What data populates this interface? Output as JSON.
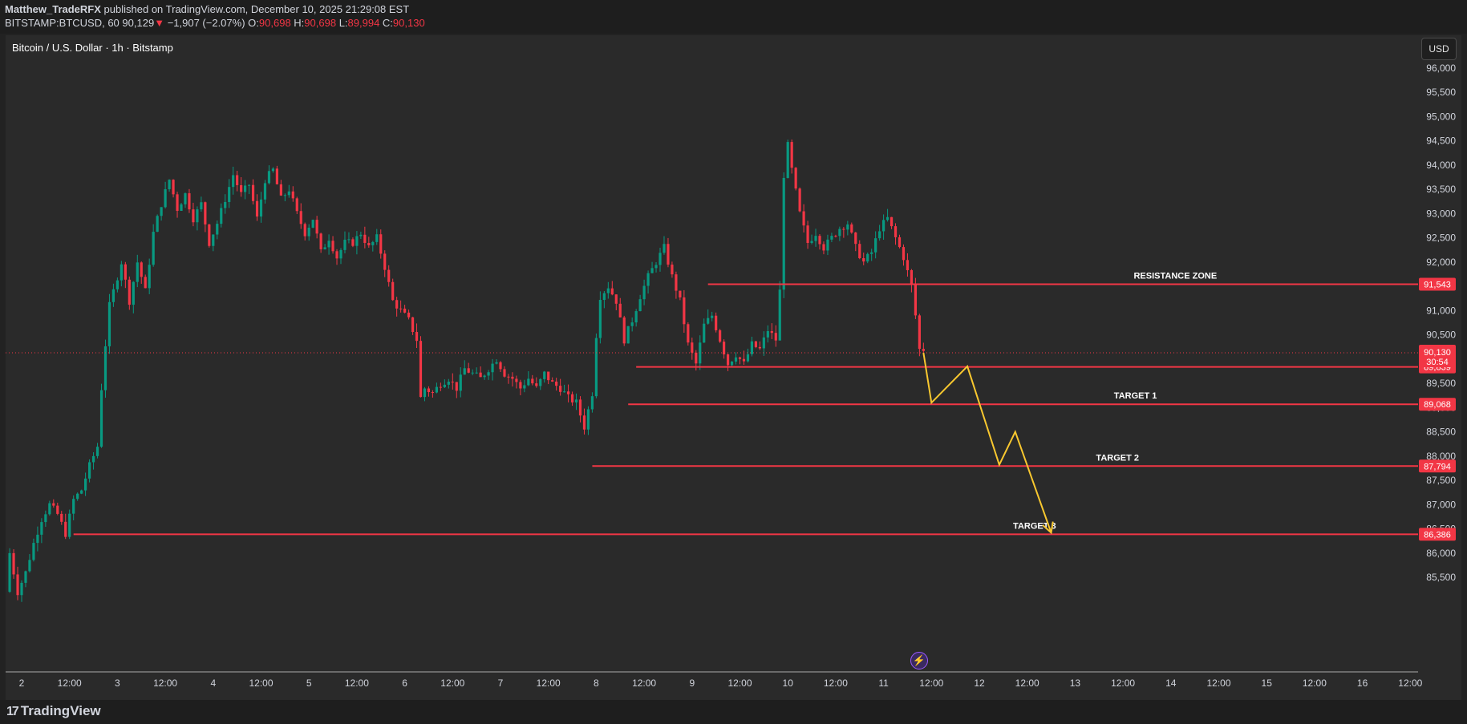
{
  "header": {
    "author": "Matthew_TradeRFX",
    "published_text": "published on TradingView.com, December 10, 2025 21:29:08 EST",
    "symbol_interval": "BITSTAMP:BTCUSD, 60",
    "last": "90,129",
    "change_arrow": "▼",
    "change": "−1,907 (−2.07%)",
    "o_label": "O:",
    "o_value": "90,698",
    "h_label": "H:",
    "h_value": "90,698",
    "l_label": "L:",
    "l_value": "89,994",
    "c_label": "C:",
    "c_value": "90,130"
  },
  "chart_title": "Bitcoin / U.S. Dollar · 1h · Bitstamp",
  "currency": "USD",
  "footer": {
    "logo_mark": "17",
    "logo_text": "TradingView"
  },
  "icons": {
    "bolt": "lightning-bolt-icon"
  },
  "colors": {
    "up": "#089981",
    "down": "#f23645",
    "level_line": "#f23645",
    "projection": "#f9c82f",
    "price_line": "#f23645"
  },
  "chart_data": {
    "type": "candlestick",
    "title": "Bitcoin / U.S. Dollar · 1h · Bitstamp",
    "ylim": [
      85000,
      97000
    ],
    "y_ticks": [
      85500,
      86000,
      86500,
      87000,
      87500,
      88000,
      88500,
      89000,
      89500,
      90000,
      90500,
      91000,
      91500,
      92000,
      92500,
      93000,
      93500,
      94000,
      94500,
      95000,
      95500,
      96000
    ],
    "y_tick_labels": [
      "85,500",
      "86,000",
      "86,500",
      "87,000",
      "87,500",
      "88,000",
      "88,500",
      "89,000",
      "89,500",
      "90,000",
      "90,500",
      "91,000",
      "91,500",
      "92,000",
      "92,500",
      "93,000",
      "93,500",
      "94,000",
      "94,500",
      "95,000",
      "95,500",
      "96,000"
    ],
    "x_ticks": [
      {
        "t": 0,
        "label": "2"
      },
      {
        "t": 12,
        "label": "12:00"
      },
      {
        "t": 24,
        "label": "3"
      },
      {
        "t": 36,
        "label": "12:00"
      },
      {
        "t": 48,
        "label": "4"
      },
      {
        "t": 60,
        "label": "12:00"
      },
      {
        "t": 72,
        "label": "5"
      },
      {
        "t": 84,
        "label": "12:00"
      },
      {
        "t": 96,
        "label": "6"
      },
      {
        "t": 108,
        "label": "12:00"
      },
      {
        "t": 120,
        "label": "7"
      },
      {
        "t": 132,
        "label": "12:00"
      },
      {
        "t": 144,
        "label": "8"
      },
      {
        "t": 156,
        "label": "12:00"
      },
      {
        "t": 168,
        "label": "9"
      },
      {
        "t": 180,
        "label": "12:00"
      },
      {
        "t": 192,
        "label": "10"
      },
      {
        "t": 204,
        "label": "12:00"
      },
      {
        "t": 216,
        "label": "11"
      },
      {
        "t": 228,
        "label": "12:00"
      },
      {
        "t": 240,
        "label": "12"
      },
      {
        "t": 252,
        "label": "12:00"
      },
      {
        "t": 264,
        "label": "13"
      },
      {
        "t": 276,
        "label": "12:00"
      },
      {
        "t": 288,
        "label": "14"
      },
      {
        "t": 300,
        "label": "12:00"
      },
      {
        "t": 312,
        "label": "15"
      },
      {
        "t": 324,
        "label": "12:00"
      },
      {
        "t": 336,
        "label": "16"
      },
      {
        "t": 348,
        "label": "12:00"
      }
    ],
    "x_range": [
      -4,
      352
    ],
    "price_path": [
      [
        -3,
        85200
      ],
      [
        -2,
        86000
      ],
      [
        0,
        85200
      ],
      [
        2,
        85600
      ],
      [
        4,
        86200
      ],
      [
        6,
        86700
      ],
      [
        8,
        87000
      ],
      [
        10,
        86800
      ],
      [
        12,
        86400
      ],
      [
        14,
        87100
      ],
      [
        16,
        87300
      ],
      [
        18,
        87800
      ],
      [
        20,
        88200
      ],
      [
        21,
        89400
      ],
      [
        22,
        90300
      ],
      [
        23,
        91100
      ],
      [
        24,
        91400
      ],
      [
        26,
        92000
      ],
      [
        28,
        91200
      ],
      [
        30,
        92000
      ],
      [
        32,
        91400
      ],
      [
        34,
        92600
      ],
      [
        36,
        93200
      ],
      [
        38,
        93700
      ],
      [
        40,
        93100
      ],
      [
        42,
        93400
      ],
      [
        44,
        92900
      ],
      [
        46,
        93200
      ],
      [
        48,
        92400
      ],
      [
        50,
        92800
      ],
      [
        52,
        93300
      ],
      [
        54,
        93800
      ],
      [
        56,
        93400
      ],
      [
        58,
        93600
      ],
      [
        60,
        92900
      ],
      [
        62,
        93700
      ],
      [
        64,
        93900
      ],
      [
        66,
        93300
      ],
      [
        68,
        93500
      ],
      [
        70,
        93000
      ],
      [
        72,
        92600
      ],
      [
        74,
        92900
      ],
      [
        76,
        92200
      ],
      [
        78,
        92500
      ],
      [
        80,
        92100
      ],
      [
        82,
        92400
      ],
      [
        84,
        92400
      ],
      [
        86,
        92600
      ],
      [
        88,
        92300
      ],
      [
        90,
        92500
      ],
      [
        92,
        91900
      ],
      [
        94,
        91200
      ],
      [
        96,
        91000
      ],
      [
        98,
        90800
      ],
      [
        100,
        90400
      ],
      [
        101,
        89200
      ],
      [
        102,
        89400
      ],
      [
        104,
        89300
      ],
      [
        106,
        89500
      ],
      [
        108,
        89600
      ],
      [
        110,
        89400
      ],
      [
        112,
        89800
      ],
      [
        114,
        89700
      ],
      [
        116,
        89600
      ],
      [
        118,
        89800
      ],
      [
        120,
        90000
      ],
      [
        122,
        89700
      ],
      [
        124,
        89600
      ],
      [
        126,
        89400
      ],
      [
        128,
        89600
      ],
      [
        130,
        89400
      ],
      [
        132,
        89700
      ],
      [
        134,
        89500
      ],
      [
        136,
        89400
      ],
      [
        138,
        89200
      ],
      [
        140,
        89100
      ],
      [
        142,
        88600
      ],
      [
        144,
        89300
      ],
      [
        145,
        90500
      ],
      [
        146,
        91300
      ],
      [
        148,
        91500
      ],
      [
        150,
        91200
      ],
      [
        152,
        90400
      ],
      [
        154,
        90800
      ],
      [
        156,
        91300
      ],
      [
        158,
        91700
      ],
      [
        160,
        92000
      ],
      [
        162,
        92300
      ],
      [
        164,
        91700
      ],
      [
        166,
        91200
      ],
      [
        168,
        90300
      ],
      [
        170,
        89900
      ],
      [
        172,
        90700
      ],
      [
        174,
        90900
      ],
      [
        176,
        90400
      ],
      [
        178,
        89900
      ],
      [
        180,
        90100
      ],
      [
        182,
        89900
      ],
      [
        184,
        90300
      ],
      [
        186,
        90200
      ],
      [
        188,
        90600
      ],
      [
        190,
        90400
      ],
      [
        191,
        91400
      ],
      [
        192,
        93800
      ],
      [
        193,
        94400
      ],
      [
        194,
        93900
      ],
      [
        196,
        93000
      ],
      [
        198,
        92400
      ],
      [
        200,
        92600
      ],
      [
        202,
        92300
      ],
      [
        204,
        92500
      ],
      [
        206,
        92700
      ],
      [
        208,
        92800
      ],
      [
        210,
        92300
      ],
      [
        212,
        92000
      ],
      [
        214,
        92200
      ],
      [
        216,
        92700
      ],
      [
        218,
        92900
      ],
      [
        220,
        92500
      ],
      [
        222,
        92100
      ],
      [
        224,
        91500
      ],
      [
        225,
        90900
      ],
      [
        226,
        90200
      ]
    ],
    "levels": [
      {
        "label": "RESISTANCE ZONE",
        "value": 91543,
        "value_label": "91,543",
        "from_t": 172
      },
      {
        "label": "",
        "value": 89839,
        "value_label": "89,839",
        "from_t": 154
      },
      {
        "label": "TARGET 1",
        "value": 89068,
        "value_label": "89,068",
        "from_t": 152
      },
      {
        "label": "TARGET 2",
        "value": 87794,
        "value_label": "87,794",
        "from_t": 143
      },
      {
        "label": "TARGET 3",
        "value": 86386,
        "value_label": "86,386",
        "from_t": 13
      }
    ],
    "current_price": {
      "value": 90130,
      "label": "90,130",
      "countdown": "30:54"
    },
    "projection": [
      [
        226,
        90130
      ],
      [
        228,
        89100
      ],
      [
        237,
        89850
      ],
      [
        245,
        87820
      ],
      [
        249,
        88500
      ],
      [
        258,
        86420
      ]
    ]
  }
}
